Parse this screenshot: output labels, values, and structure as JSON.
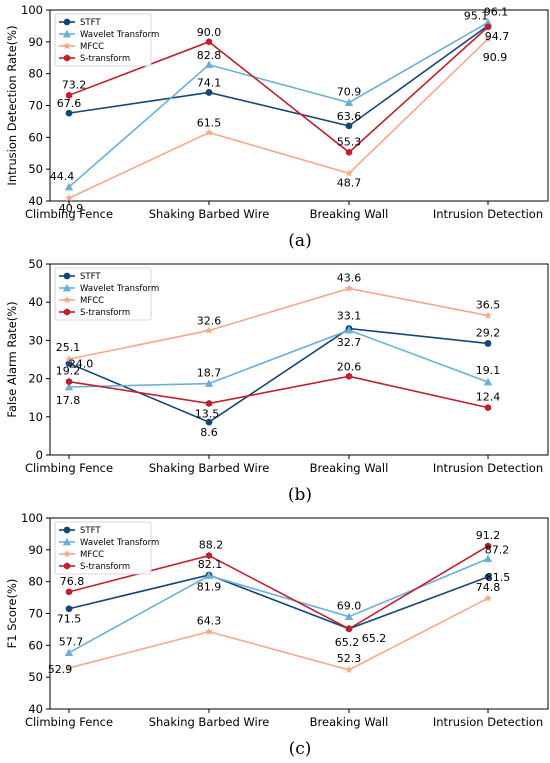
{
  "colors": {
    "STFT": "#15467a",
    "Wavelet Transform": "#6ab0d8",
    "MFCC": "#f5a98a",
    "S-transform": "#c0202e"
  },
  "markers": {
    "STFT": "circle",
    "Wavelet Transform": "triangle",
    "MFCC": "star",
    "S-transform": "hexagon"
  },
  "chart_data": [
    {
      "type": "line",
      "panel_label": "(a)",
      "ylabel": "Intrusion Detection Rate(%)",
      "ylim": [
        40,
        100
      ],
      "yticks": [
        40,
        50,
        60,
        70,
        80,
        90,
        100
      ],
      "categories": [
        "Climbing Fence",
        "Shaking Barbed Wire",
        "Breaking Wall",
        "Intrusion Detection"
      ],
      "legend": "top-left",
      "series": [
        {
          "name": "STFT",
          "values": [
            67.6,
            74.1,
            63.6,
            95.1
          ]
        },
        {
          "name": "Wavelet Transform",
          "values": [
            44.4,
            82.8,
            70.9,
            96.1
          ]
        },
        {
          "name": "MFCC",
          "values": [
            40.9,
            61.5,
            48.7,
            90.9
          ]
        },
        {
          "name": "S-transform",
          "values": [
            73.2,
            90.0,
            55.3,
            94.7
          ]
        }
      ]
    },
    {
      "type": "line",
      "panel_label": "(b)",
      "ylabel": "False Alarm Rate(%)",
      "ylim": [
        0,
        50
      ],
      "yticks": [
        0,
        10,
        20,
        30,
        40,
        50
      ],
      "categories": [
        "Climbing Fence",
        "Shaking Barbed Wire",
        "Breaking Wall",
        "Intrusion Detection"
      ],
      "legend": "top-left",
      "series": [
        {
          "name": "STFT",
          "values": [
            24.0,
            8.6,
            33.1,
            29.2
          ]
        },
        {
          "name": "Wavelet Transform",
          "values": [
            17.8,
            18.7,
            32.7,
            19.1
          ]
        },
        {
          "name": "MFCC",
          "values": [
            25.1,
            32.6,
            43.6,
            36.5
          ]
        },
        {
          "name": "S-transform",
          "values": [
            19.2,
            13.5,
            20.6,
            12.4
          ]
        }
      ]
    },
    {
      "type": "line",
      "panel_label": "(c)",
      "ylabel": "F1 Score(%)",
      "ylim": [
        40,
        100
      ],
      "yticks": [
        40,
        50,
        60,
        70,
        80,
        90,
        100
      ],
      "categories": [
        "Climbing Fence",
        "Shaking Barbed Wire",
        "Breaking Wall",
        "Intrusion Detection"
      ],
      "legend": "top-left",
      "series": [
        {
          "name": "STFT",
          "values": [
            71.5,
            82.1,
            65.2,
            81.5
          ]
        },
        {
          "name": "Wavelet Transform",
          "values": [
            57.7,
            81.9,
            69.0,
            87.2
          ]
        },
        {
          "name": "MFCC",
          "values": [
            52.9,
            64.3,
            52.3,
            74.8
          ]
        },
        {
          "name": "S-transform",
          "values": [
            76.8,
            88.2,
            65.2,
            91.2
          ]
        }
      ]
    }
  ]
}
